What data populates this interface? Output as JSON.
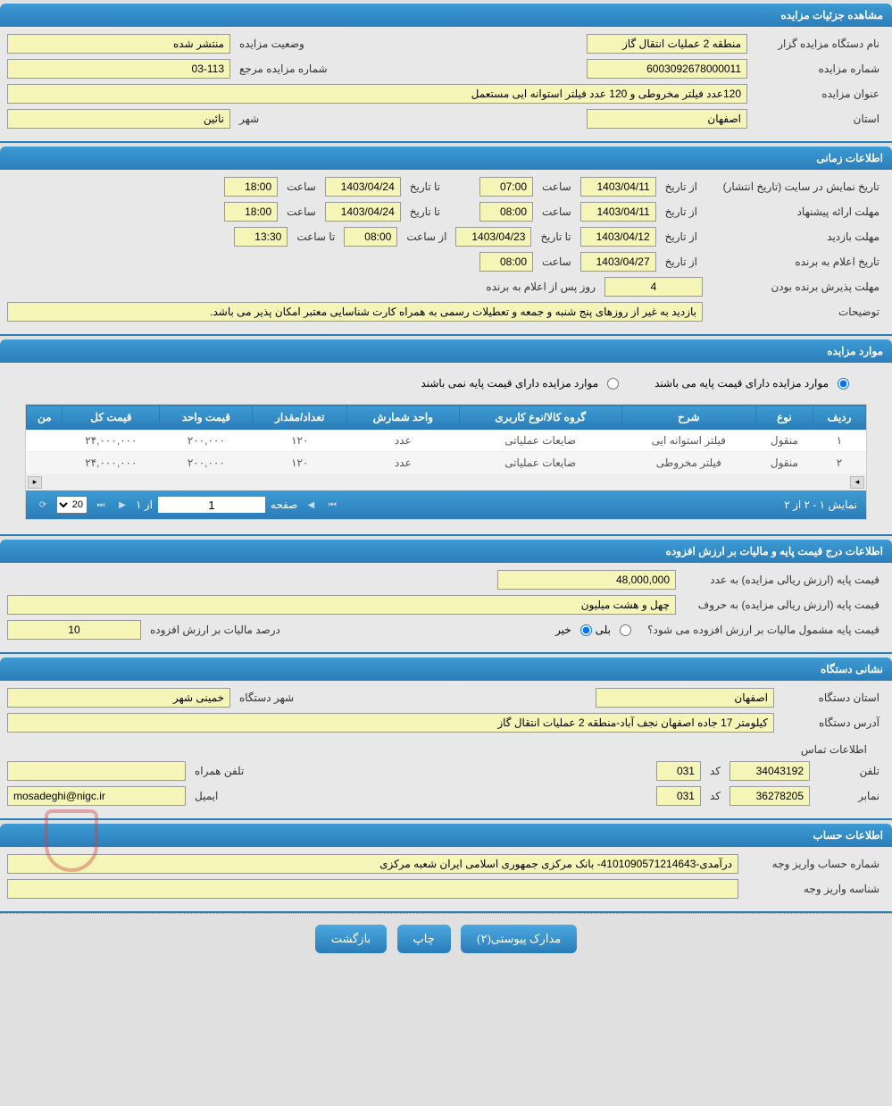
{
  "colors": {
    "header_bg_top": "#3d9bd4",
    "header_bg_bottom": "#2b7db8",
    "field_bg": "#f5f5b8",
    "body_bg": "#e0e0e0",
    "text": "#333333"
  },
  "sections": {
    "details": {
      "title": "مشاهده جزئیات مزایده",
      "org_label": "نام دستگاه مزایده گزار",
      "org_value": "منطقه 2 عملیات انتقال گاز",
      "status_label": "وضعیت مزایده",
      "status_value": "منتشر شده",
      "number_label": "شماره مزایده",
      "number_value": "6003092678000011",
      "ref_label": "شماره مزایده مرجع",
      "ref_value": "03-113",
      "title_label": "عنوان مزایده",
      "title_value": "120عدد فیلتر مخروطی و 120 عدد فیلتر استوانه ایی مستعمل",
      "province_label": "استان",
      "province_value": "اصفهان",
      "city_label": "شهر",
      "city_value": "نائین"
    },
    "timing": {
      "title": "اطلاعات زمانی",
      "publish_label": "تاریخ نمایش در سایت (تاریخ انتشار)",
      "from_date_label": "از تاریخ",
      "to_date_label": "تا تاریخ",
      "time_label": "ساعت",
      "from_time_label": "از ساعت",
      "to_time_label": "تا ساعت",
      "publish_from_date": "1403/04/11",
      "publish_from_time": "07:00",
      "publish_to_date": "1403/04/24",
      "publish_to_time": "18:00",
      "proposal_label": "مهلت ارائه پیشنهاد",
      "proposal_from_date": "1403/04/11",
      "proposal_from_time": "08:00",
      "proposal_to_date": "1403/04/24",
      "proposal_to_time": "18:00",
      "visit_label": "مهلت بازدید",
      "visit_from_date": "1403/04/12",
      "visit_to_date": "1403/04/23",
      "visit_from_time": "08:00",
      "visit_to_time": "13:30",
      "winner_label": "تاریخ اعلام به برنده",
      "winner_date": "1403/04/27",
      "winner_time": "08:00",
      "accept_label": "مهلت پذیرش برنده بودن",
      "accept_days": "4",
      "accept_suffix": "روز پس از اعلام به برنده",
      "notes_label": "توضیحات",
      "notes_value": "بازدید به غیر از روزهای پنج شنبه و جمعه و تعطیلات رسمی به همراه کارت شناسایی معتبر امکان پذیر می باشد."
    },
    "items": {
      "title": "موارد مزایده",
      "radio_has_base": "موارد مزایده دارای قیمت پایه می باشند",
      "radio_no_base": "موارد مزایده دارای قیمت پایه نمی باشند",
      "columns": [
        "ردیف",
        "نوع",
        "شرح",
        "گروه کالا/نوع کاربری",
        "واحد شمارش",
        "تعداد/مقدار",
        "قیمت واحد",
        "قیمت کل",
        "من"
      ],
      "rows": [
        [
          "۱",
          "منقول",
          "فیلتر استوانه ایی",
          "ضایعات عملیاتی",
          "عدد",
          "۱۲۰",
          "۲۰۰,۰۰۰",
          "۲۴,۰۰۰,۰۰۰",
          ""
        ],
        [
          "۲",
          "منقول",
          "فیلتر مخروطی",
          "ضایعات عملیاتی",
          "عدد",
          "۱۲۰",
          "۲۰۰,۰۰۰",
          "۲۴,۰۰۰,۰۰۰",
          ""
        ]
      ],
      "pager_display": "نمایش ۱ - ۲ از ۲",
      "pager_page_label": "صفحه",
      "pager_page_value": "1",
      "pager_of": "از ۱",
      "pager_size": "20"
    },
    "price": {
      "title": "اطلاعات درج قیمت پایه و مالیات بر ارزش افزوده",
      "base_num_label": "قیمت پایه (ارزش ریالی مزایده) به عدد",
      "base_num_value": "48,000,000",
      "base_text_label": "قیمت پایه (ارزش ریالی مزایده) به حروف",
      "base_text_value": "چهل و هشت میلیون",
      "vat_q_label": "قیمت پایه مشمول مالیات بر ارزش افزوده می شود؟",
      "vat_yes": "بلی",
      "vat_no": "خیر",
      "vat_pct_label": "درصد مالیات بر ارزش افزوده",
      "vat_pct_value": "10"
    },
    "address": {
      "title": "نشانی دستگاه",
      "province_label": "استان دستگاه",
      "province_value": "اصفهان",
      "city_label": "شهر دستگاه",
      "city_value": "خمینی شهر",
      "address_label": "آدرس دستگاه",
      "address_value": "کیلومتر 17 جاده اصفهان نجف آباد-منطقه 2 عملیات انتقال گاز",
      "contact_title": "اطلاعات تماس",
      "phone_label": "تلفن",
      "phone_value": "34043192",
      "code_label": "کد",
      "phone_code": "031",
      "mobile_label": "تلفن همراه",
      "mobile_value": "",
      "fax_label": "نمابر",
      "fax_value": "36278205",
      "fax_code": "031",
      "email_label": "ایمیل",
      "email_value": "mosadeghi@nigc.ir"
    },
    "account": {
      "title": "اطلاعات حساب",
      "acc_num_label": "شماره حساب واریز وجه",
      "acc_num_value": "درآمدی-4101090571214643- بانک مرکزی جمهوری اسلامی ایران شعبه مرکزی",
      "payid_label": "شناسه واریز وجه",
      "payid_value": ""
    }
  },
  "buttons": {
    "attachments": "مدارک پیوستی(۲)",
    "print": "چاپ",
    "back": "بازگشت"
  }
}
